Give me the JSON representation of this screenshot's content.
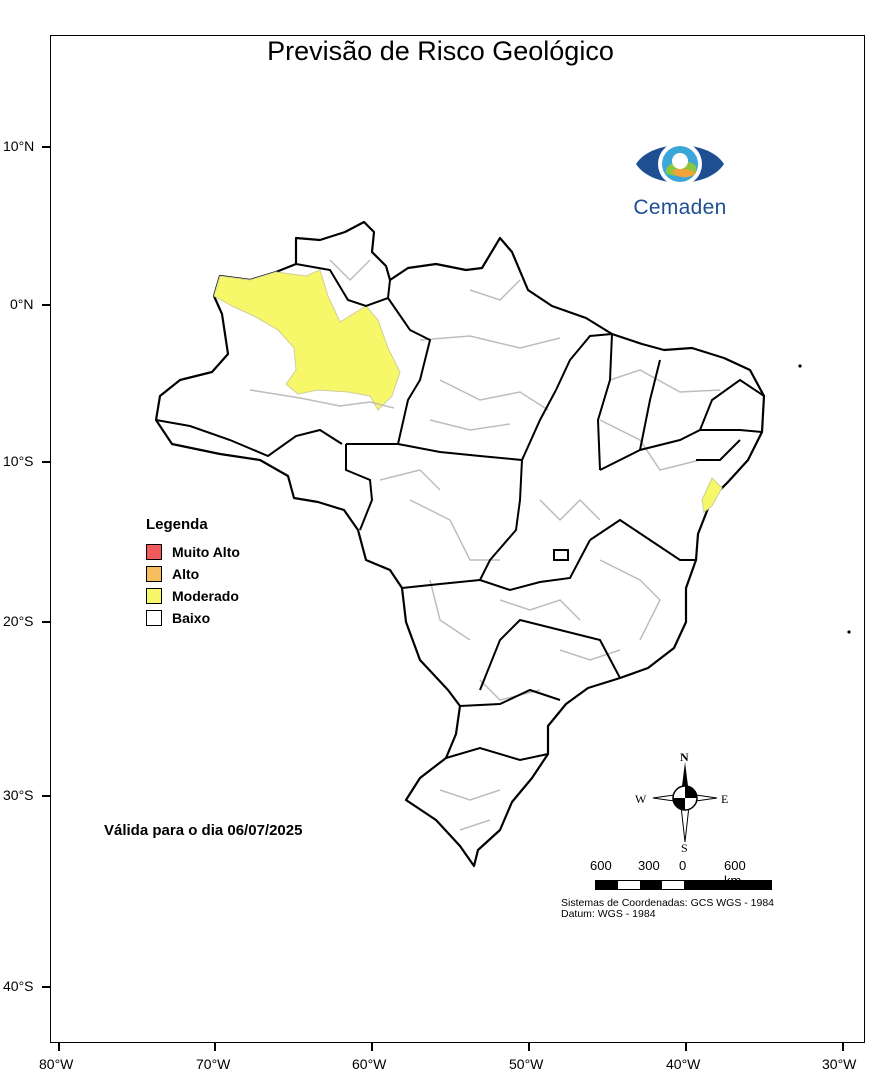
{
  "title": "Previsão de Risco Geológico",
  "latitude_labels": [
    "10°N",
    "0°N",
    "10°S",
    "20°S",
    "30°S",
    "40°S"
  ],
  "longitude_labels": [
    "80°W",
    "70°W",
    "60°W",
    "50°W",
    "40°W",
    "30°W"
  ],
  "logo": {
    "text": "Cemaden"
  },
  "legend": {
    "title": "Legenda",
    "items": [
      {
        "label": "Muito Alto",
        "color": "#f25b5b"
      },
      {
        "label": "Alto",
        "color": "#f7be5f"
      },
      {
        "label": "Moderado",
        "color": "#f7f76a"
      },
      {
        "label": "Baixo",
        "color": "#ffffff"
      }
    ]
  },
  "validity": "Válida para o dia 06/07/2025",
  "compass": {
    "n": "N",
    "s": "S",
    "e": "E",
    "w": "W"
  },
  "scale": {
    "labels": [
      "600",
      "300",
      "0",
      "600 km"
    ]
  },
  "coordinate_system": "Sistemas de Coordenadas: GCS WGS - 1984",
  "datum": "Datum: WGS - 1984",
  "colors": {
    "moderate_fill": "#f7f76a",
    "border": "#000000",
    "municipal_lines": "#bdbdbd"
  }
}
